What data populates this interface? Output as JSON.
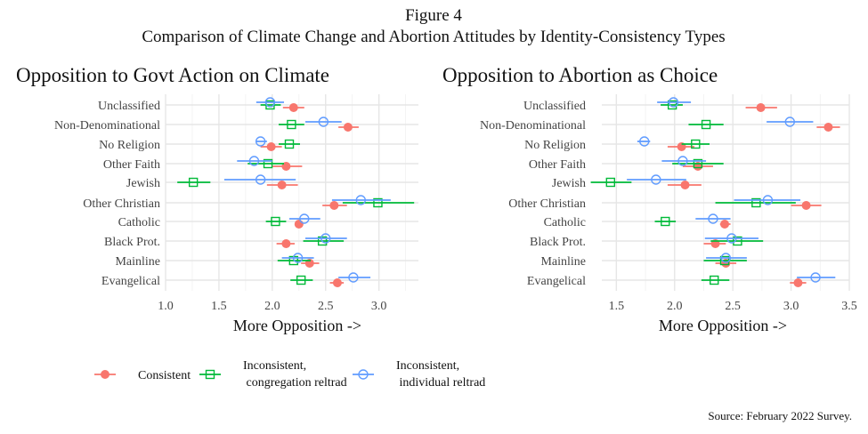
{
  "figure": {
    "label": "Figure 4",
    "title": "Comparison of Climate Change and Abortion Attitudes by Identity-Consistency Types",
    "source": "Source: February 2022 Survey."
  },
  "legend": {
    "position": "bottom-left",
    "entries": [
      {
        "label1": "Consistent",
        "label2": "",
        "color": "#F8766D",
        "shape": "filled-circle"
      },
      {
        "label1": "Inconsistent,",
        "label2": " congregation reltrad",
        "color": "#00BA38",
        "shape": "open-square"
      },
      {
        "label1": "Inconsistent,",
        "label2": " individual reltrad",
        "color": "#619CFF",
        "shape": "open-circle"
      }
    ]
  },
  "chart_data": [
    {
      "type": "scatter",
      "title": "Opposition to Govt Action on Climate",
      "xlabel": "More Opposition ->",
      "ylabel": "",
      "xlim": [
        1.0,
        3.37
      ],
      "xticks": [
        "1.0",
        "1.5",
        "2.0",
        "2.5",
        "3.0"
      ],
      "grid": true,
      "categories": [
        "Unclassified",
        "Non-Denominational",
        "No Religion",
        "Other Faith",
        "Jewish",
        "Other Christian",
        "Catholic",
        "Black Prot.",
        "Mainline",
        "Evangelical"
      ],
      "series": [
        {
          "name": "Consistent",
          "values": [
            [
              2.2,
              2.1,
              2.3
            ],
            [
              2.71,
              2.62,
              2.81
            ],
            [
              1.99,
              1.89,
              2.09
            ],
            [
              2.13,
              2.0,
              2.28
            ],
            [
              2.09,
              1.95,
              2.24
            ],
            [
              2.58,
              2.47,
              2.7
            ],
            [
              2.25,
              2.22,
              2.29
            ],
            [
              2.13,
              2.04,
              2.21
            ],
            [
              2.35,
              2.27,
              2.44
            ],
            [
              2.61,
              2.54,
              2.67
            ]
          ]
        },
        {
          "name": "Inconsistent, congregation reltrad",
          "values": [
            [
              1.98,
              1.89,
              2.08
            ],
            [
              2.18,
              2.06,
              2.3
            ],
            [
              2.16,
              2.06,
              2.26
            ],
            [
              1.96,
              1.77,
              2.11
            ],
            [
              1.26,
              1.11,
              1.42
            ],
            [
              2.99,
              2.66,
              3.33
            ],
            [
              2.03,
              1.94,
              2.13
            ],
            [
              2.47,
              2.29,
              2.67
            ],
            [
              2.2,
              2.05,
              2.36
            ],
            [
              2.27,
              2.17,
              2.38
            ]
          ]
        },
        {
          "name": "Inconsistent, individual reltrad",
          "values": [
            [
              1.98,
              1.85,
              2.11
            ],
            [
              2.48,
              2.31,
              2.65
            ],
            [
              1.89,
              1.85,
              1.95
            ],
            [
              1.83,
              1.67,
              2.0
            ],
            [
              1.89,
              1.55,
              2.22
            ],
            [
              2.83,
              2.56,
              3.11
            ],
            [
              2.3,
              2.16,
              2.45
            ],
            [
              2.5,
              2.31,
              2.7
            ],
            [
              2.24,
              2.09,
              2.39
            ],
            [
              2.76,
              2.62,
              2.92
            ]
          ]
        }
      ]
    },
    {
      "type": "scatter",
      "title": "Opposition to Abortion as Choice",
      "xlabel": "More Opposition ->",
      "ylabel": "",
      "xlim": [
        1.375,
        3.5
      ],
      "xticks": [
        "1.5",
        "2.0",
        "2.5",
        "3.0",
        "3.5"
      ],
      "grid": true,
      "categories": [
        "Unclassified",
        "Non-Denominational",
        "No Religion",
        "Other Faith",
        "Jewish",
        "Other Christian",
        "Catholic",
        "Black Prot.",
        "Mainline",
        "Evangelical"
      ],
      "series": [
        {
          "name": "Consistent",
          "values": [
            [
              2.74,
              2.61,
              2.88
            ],
            [
              3.32,
              3.22,
              3.42
            ],
            [
              2.06,
              1.94,
              2.17
            ],
            [
              2.2,
              2.07,
              2.33
            ],
            [
              2.09,
              1.94,
              2.23
            ],
            [
              3.13,
              3.0,
              3.26
            ],
            [
              2.43,
              2.39,
              2.48
            ],
            [
              2.35,
              2.25,
              2.44
            ],
            [
              2.44,
              2.35,
              2.53
            ],
            [
              3.06,
              2.99,
              3.13
            ]
          ]
        },
        {
          "name": "Inconsistent, congregation reltrad",
          "values": [
            [
              1.98,
              1.88,
              2.07
            ],
            [
              2.27,
              2.12,
              2.42
            ],
            [
              2.18,
              2.06,
              2.3
            ],
            [
              2.2,
              1.98,
              2.42
            ],
            [
              1.45,
              1.28,
              1.63
            ],
            [
              2.7,
              2.35,
              3.04
            ],
            [
              1.92,
              1.83,
              2.01
            ],
            [
              2.54,
              2.31,
              2.76
            ],
            [
              2.43,
              2.25,
              2.62
            ],
            [
              2.34,
              2.23,
              2.47
            ]
          ]
        },
        {
          "name": "Inconsistent, individual reltrad",
          "values": [
            [
              1.99,
              1.85,
              2.14
            ],
            [
              2.99,
              2.79,
              3.19
            ],
            [
              1.74,
              1.68,
              1.79
            ],
            [
              2.07,
              1.89,
              2.27
            ],
            [
              1.84,
              1.59,
              2.1
            ],
            [
              2.8,
              2.51,
              3.08
            ],
            [
              2.33,
              2.18,
              2.48
            ],
            [
              2.49,
              2.26,
              2.72
            ],
            [
              2.44,
              2.27,
              2.62
            ],
            [
              3.21,
              3.05,
              3.38
            ]
          ]
        }
      ]
    }
  ]
}
